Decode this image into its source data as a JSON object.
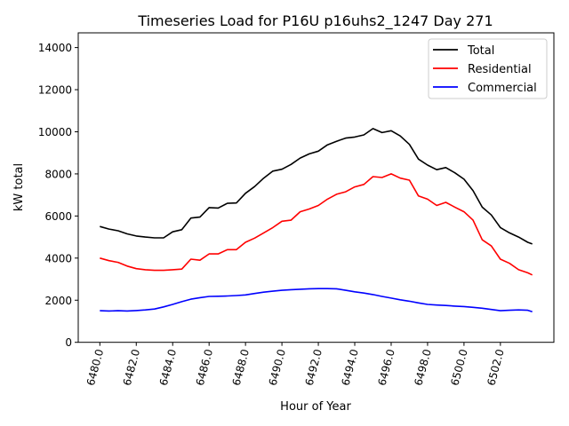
{
  "chart_data": {
    "type": "line",
    "title": "Timeseries Load for P16U p16uhs2_1247  Day 271",
    "xlabel": "Hour of Year",
    "ylabel": "kW total",
    "xlim": [
      6478.8125,
      6504.9375
    ],
    "ylim": [
      0,
      14700
    ],
    "xticks": [
      6480,
      6482,
      6484,
      6486,
      6488,
      6490,
      6492,
      6494,
      6496,
      6498,
      6500,
      6502
    ],
    "xtick_labels": [
      "6480.0",
      "6482.0",
      "6484.0",
      "6486.0",
      "6488.0",
      "6490.0",
      "6492.0",
      "6494.0",
      "6496.0",
      "6498.0",
      "6500.0",
      "6502.0"
    ],
    "yticks": [
      0,
      2000,
      4000,
      6000,
      8000,
      10000,
      12000,
      14000
    ],
    "ytick_labels": [
      "0",
      "2000",
      "4000",
      "6000",
      "8000",
      "10000",
      "12000",
      "14000"
    ],
    "grid": false,
    "legend_position": "top-right",
    "x": [
      6480,
      6480.5,
      6481,
      6481.5,
      6482,
      6482.5,
      6483,
      6483.5,
      6484,
      6484.5,
      6485,
      6485.5,
      6486,
      6486.5,
      6487,
      6487.5,
      6488,
      6488.5,
      6489,
      6489.5,
      6490,
      6490.5,
      6491,
      6491.5,
      6492,
      6492.5,
      6493,
      6493.5,
      6494,
      6494.5,
      6495,
      6495.5,
      6496,
      6496.5,
      6497,
      6497.5,
      6498,
      6498.5,
      6499,
      6499.5,
      6500,
      6500.5,
      6501,
      6501.5,
      6502,
      6502.5,
      6503,
      6503.5,
      6503.75
    ],
    "series": [
      {
        "name": "Total",
        "color": "#000000",
        "values": [
          5500,
          5380,
          5300,
          5150,
          5050,
          5000,
          4960,
          4960,
          5250,
          5350,
          5900,
          5950,
          6400,
          6380,
          6600,
          6620,
          7080,
          7400,
          7800,
          8130,
          8220,
          8450,
          8750,
          8950,
          9080,
          9380,
          9550,
          9700,
          9750,
          9850,
          10150,
          9960,
          10050,
          9800,
          9400,
          8700,
          8420,
          8200,
          8300,
          8050,
          7750,
          7200,
          6420,
          6050,
          5450,
          5200,
          5000,
          4750,
          4670
        ]
      },
      {
        "name": "Residential",
        "color": "#ff0000",
        "values": [
          4000,
          3880,
          3800,
          3620,
          3500,
          3450,
          3420,
          3420,
          3450,
          3480,
          3950,
          3900,
          4200,
          4200,
          4400,
          4400,
          4750,
          4950,
          5200,
          5450,
          5750,
          5800,
          6200,
          6330,
          6500,
          6800,
          7030,
          7150,
          7380,
          7500,
          7870,
          7830,
          8000,
          7800,
          7700,
          6950,
          6800,
          6500,
          6650,
          6420,
          6200,
          5800,
          4870,
          4580,
          3950,
          3750,
          3450,
          3300,
          3200
        ]
      },
      {
        "name": "Commercial",
        "color": "#0000ff",
        "values": [
          1500,
          1490,
          1500,
          1490,
          1510,
          1540,
          1580,
          1680,
          1800,
          1930,
          2050,
          2120,
          2180,
          2190,
          2200,
          2220,
          2250,
          2320,
          2380,
          2430,
          2470,
          2500,
          2520,
          2540,
          2550,
          2550,
          2540,
          2470,
          2400,
          2340,
          2270,
          2180,
          2100,
          2020,
          1950,
          1870,
          1800,
          1770,
          1750,
          1720,
          1700,
          1660,
          1620,
          1560,
          1500,
          1520,
          1540,
          1520,
          1450
        ]
      }
    ]
  }
}
